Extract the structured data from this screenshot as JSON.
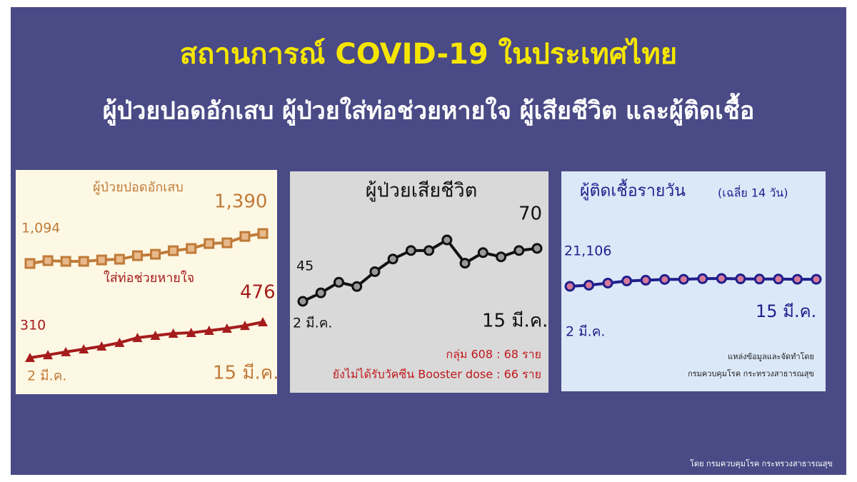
{
  "header": {
    "title": "สถานการณ์ COVID-19 ในประเทศไทย",
    "subtitle": "ผู้ป่วยปอดอักเสบ ผู้ป่วยใส่ท่อช่วยหายใจ ผู้เสียชีวิต และผู้ติดเชื้อ"
  },
  "chart_data": [
    {
      "type": "line",
      "categories": [
        "2 มี.ค.",
        null,
        null,
        null,
        null,
        null,
        null,
        null,
        null,
        null,
        null,
        null,
        null,
        "15 มี.ค."
      ],
      "series": [
        {
          "name": "ผู้ป่วยปอดอักเสบ",
          "color": "#c07b3a",
          "values": [
            1094,
            1122,
            1115,
            1115,
            1129,
            1136,
            1171,
            1185,
            1220,
            1242,
            1291,
            1298,
            1361,
            1390
          ],
          "value_labels": [
            "1,094",
            null,
            null,
            null,
            null,
            null,
            null,
            null,
            null,
            null,
            null,
            null,
            null,
            "1,390"
          ]
        },
        {
          "name": "ใส่ท่อช่วยหายใจ",
          "color": "#a51c1c",
          "values": [
            310,
            323,
            337,
            350,
            363,
            380,
            403,
            413,
            423,
            426,
            436,
            446,
            459,
            476
          ]
        }
      ]
    },
    {
      "type": "line",
      "title": "ผู้ป่วยเสียชีวิต",
      "color": "#111111",
      "categories": [
        "2 มี.ค.",
        null,
        null,
        null,
        null,
        null,
        null,
        null,
        null,
        null,
        null,
        null,
        null,
        "15 มี.ค."
      ],
      "values": [
        45,
        49,
        54,
        52,
        59,
        65,
        69,
        69,
        74,
        63,
        68,
        66,
        69,
        70
      ],
      "notes": [
        "กลุ่ม 608 : 68 ราย",
        "ยังไม่ได้รับวัคซีน Booster dose : 66 ราย"
      ]
    },
    {
      "type": "line",
      "title": "ผู้ติดเชื้อรายวัน",
      "subtitle": "(เฉลี่ย 14 วัน)",
      "color": "#1f1f8c",
      "categories": [
        "2 มี.ค.",
        null,
        null,
        null,
        null,
        null,
        null,
        null,
        null,
        null,
        null,
        null,
        null,
        "15 มี.ค."
      ],
      "values": [
        21106,
        21400,
        21950,
        22500,
        22700,
        22900,
        22950,
        23100,
        23150,
        23050,
        23000,
        23000,
        22950,
        22950
      ],
      "value_labels": [
        "21,106",
        null,
        null,
        null,
        null,
        null,
        null,
        null,
        null,
        null,
        null,
        null,
        null,
        null
      ],
      "source": [
        "แหล่งข้อมูลและจัดทำโดย",
        "กรมควบคุมโรค กระทรวงสาธารณสุข"
      ]
    }
  ],
  "footer": "โดย กรมควบคุมโรค กระทรวงสาธารณสุข"
}
